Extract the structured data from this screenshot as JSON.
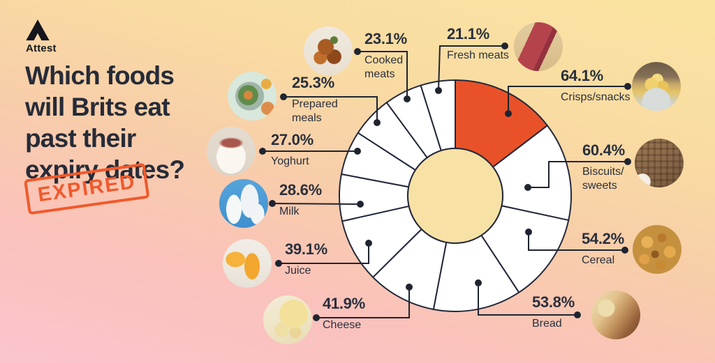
{
  "brand": {
    "name": "Attest",
    "logo_icon": "attest-triangle-logo"
  },
  "header": {
    "title_lines": [
      "Which foods",
      "will Brits eat",
      "past their",
      "expiry dates?"
    ],
    "stamp_text": "EXPIRED"
  },
  "colors": {
    "background_top": "#FAE3A1",
    "background_bottom": "#FBC5CE",
    "accent_orange": "#E95229",
    "stamp_orange": "#F1592B",
    "outline_dark": "#23293B",
    "connector_dark": "#1F2430",
    "text_dark": "#2A2F3D",
    "slice_fill": "#FFFFFF",
    "donut_hole_fill": "#F7E1A5"
  },
  "chart_data": {
    "type": "pie",
    "variant": "donut",
    "title": "Which foods will Brits eat past their expiry dates?",
    "unit": "%",
    "direction": "clockwise",
    "start_angle_deg": 0,
    "slices_proportional_to_values": true,
    "highlight_category": "Crisps/snacks",
    "series": [
      {
        "id": "crisps",
        "category": "Crisps/snacks",
        "value": 64.1,
        "label": "64.1%",
        "name_lines": [
          "Crisps/snacks"
        ],
        "photo": "crisps-bowl-photo",
        "highlight": true
      },
      {
        "id": "biscuits",
        "category": "Biscuits/sweets",
        "value": 60.4,
        "label": "60.4%",
        "name_lines": [
          "Biscuits/",
          "sweets"
        ],
        "photo": "biscuit-photo",
        "highlight": false
      },
      {
        "id": "cereal",
        "category": "Cereal",
        "value": 54.2,
        "label": "54.2%",
        "name_lines": [
          "Cereal"
        ],
        "photo": "cereal-flakes-photo",
        "highlight": false
      },
      {
        "id": "bread",
        "category": "Bread",
        "value": 53.8,
        "label": "53.8%",
        "name_lines": [
          "Bread"
        ],
        "photo": "bread-loaf-photo",
        "highlight": false
      },
      {
        "id": "cheese",
        "category": "Cheese",
        "value": 41.9,
        "label": "41.9%",
        "name_lines": [
          "Cheese"
        ],
        "photo": "cheese-photo",
        "highlight": false
      },
      {
        "id": "juice",
        "category": "Juice",
        "value": 39.1,
        "label": "39.1%",
        "name_lines": [
          "Juice"
        ],
        "photo": "orange-juice-photo",
        "highlight": false
      },
      {
        "id": "milk",
        "category": "Milk",
        "value": 28.6,
        "label": "28.6%",
        "name_lines": [
          "Milk"
        ],
        "photo": "milk-bottles-photo",
        "highlight": false
      },
      {
        "id": "yoghurt",
        "category": "Yoghurt",
        "value": 27.0,
        "label": "27.0%",
        "name_lines": [
          "Yoghurt"
        ],
        "photo": "yoghurt-photo",
        "highlight": false
      },
      {
        "id": "prepared-meals",
        "category": "Prepared meals",
        "value": 25.3,
        "label": "25.3%",
        "name_lines": [
          "Prepared",
          "meals"
        ],
        "photo": "prepared-meal-photo",
        "highlight": false
      },
      {
        "id": "cooked-meats",
        "category": "Cooked meats",
        "value": 23.1,
        "label": "23.1%",
        "name_lines": [
          "Cooked",
          "meats"
        ],
        "photo": "cooked-meats-photo",
        "highlight": false
      },
      {
        "id": "fresh-meats",
        "category": "Fresh meats",
        "value": 21.1,
        "label": "21.1%",
        "name_lines": [
          "Fresh meats"
        ],
        "photo": "fresh-meat-photo",
        "highlight": false
      }
    ]
  }
}
